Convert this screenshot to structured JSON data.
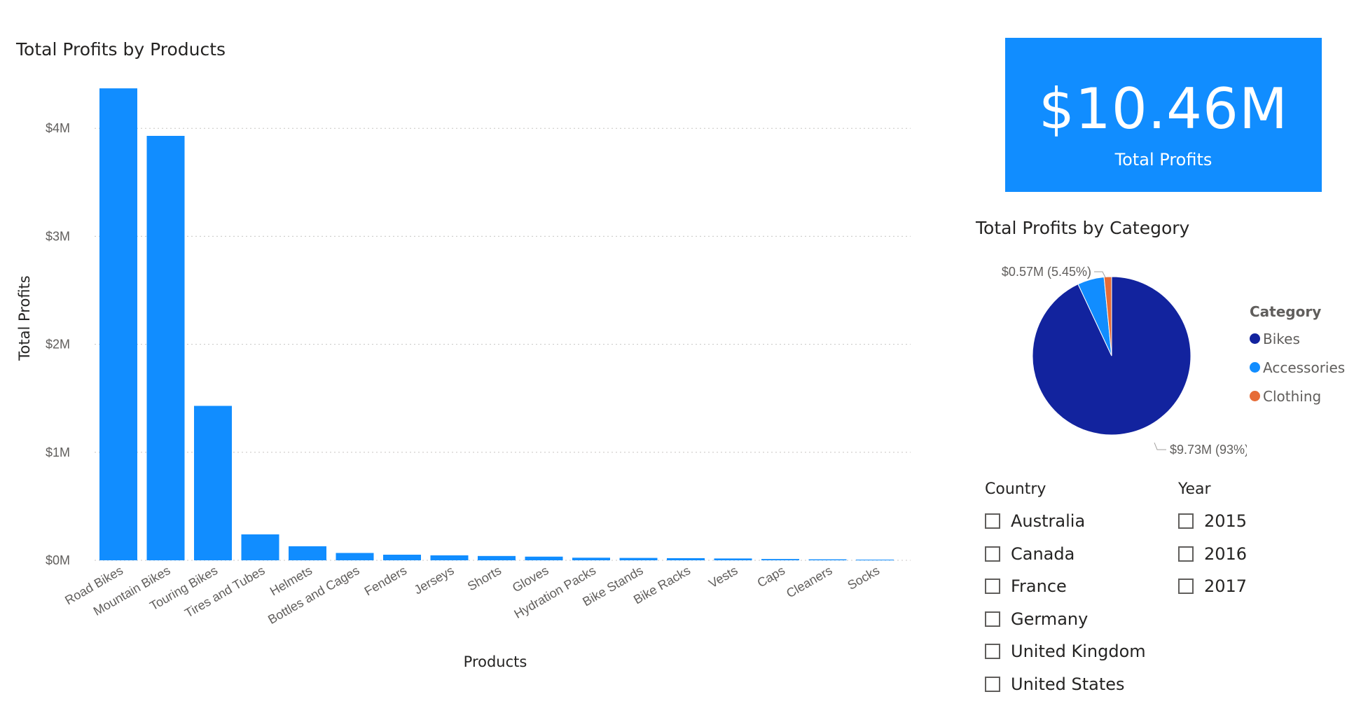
{
  "bar_chart": {
    "title": "Total Profits by Products"
  },
  "chart_data": [
    {
      "type": "bar",
      "title": "Total Profits by Products",
      "xlabel": "Products",
      "ylabel": "Total Profits",
      "categories": [
        "Road Bikes",
        "Mountain Bikes",
        "Touring Bikes",
        "Tires and Tubes",
        "Helmets",
        "Bottles and Cages",
        "Fenders",
        "Jerseys",
        "Shorts",
        "Gloves",
        "Hydration Packs",
        "Bike Stands",
        "Bike Racks",
        "Vests",
        "Caps",
        "Cleaners",
        "Socks"
      ],
      "values": [
        4370000,
        3930000,
        1430000,
        240000,
        130000,
        68000,
        52000,
        46000,
        40000,
        34000,
        24000,
        22000,
        20000,
        17000,
        12000,
        9000,
        6000
      ],
      "yticks": [
        "$0M",
        "$1M",
        "$2M",
        "$3M",
        "$4M"
      ],
      "ylim": [
        0,
        4400000
      ],
      "grid": true,
      "color": "#118dff"
    },
    {
      "type": "pie",
      "title": "Total Profits by Category",
      "legend_title": "Category",
      "legend_position": "right",
      "slices": [
        {
          "name": "Bikes",
          "value": 9.73,
          "color": "#12239e"
        },
        {
          "name": "Accessories",
          "value": 0.57,
          "color": "#118dff"
        },
        {
          "name": "Clothing",
          "value": 0.16,
          "color": "#e66c37"
        }
      ],
      "data_labels": [
        "$9.73M (93%)",
        "$0.57M (5.45%)"
      ]
    }
  ],
  "kpi": {
    "value": "$10.46M",
    "label": "Total Profits"
  },
  "pie_chart": {
    "title": "Total Profits by Category"
  },
  "country_slicer": {
    "header": "Country",
    "items": [
      "Australia",
      "Canada",
      "France",
      "Germany",
      "United Kingdom",
      "United States"
    ]
  },
  "year_slicer": {
    "header": "Year",
    "items": [
      "2015",
      "2016",
      "2017"
    ]
  }
}
